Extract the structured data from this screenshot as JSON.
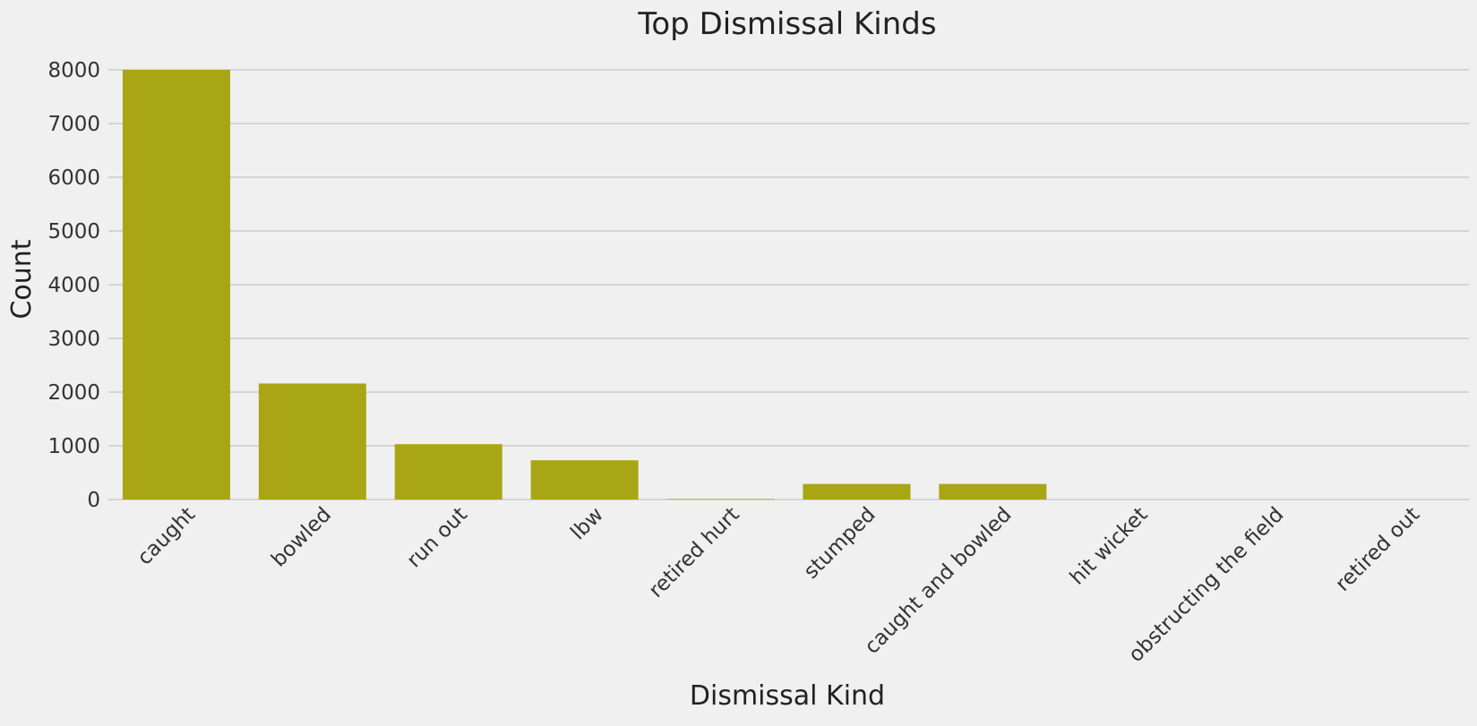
{
  "chart_data": {
    "type": "bar",
    "title": "Top Dismissal Kinds",
    "xlabel": "Dismissal Kind",
    "ylabel": "Count",
    "categories": [
      "caught",
      "bowled",
      "run out",
      "lbw",
      "retired hurt",
      "stumped",
      "caught and bowled",
      "hit wicket",
      "obstructing the field",
      "retired out"
    ],
    "values": [
      8000,
      2160,
      1030,
      730,
      10,
      290,
      290,
      0,
      0,
      0
    ],
    "ylim": [
      0,
      8000
    ],
    "yticks": [
      0,
      1000,
      2000,
      3000,
      4000,
      5000,
      6000,
      7000,
      8000
    ],
    "grid": "horizontal",
    "bar_color": "#a9a615",
    "background_color": "#f0f0f0"
  }
}
